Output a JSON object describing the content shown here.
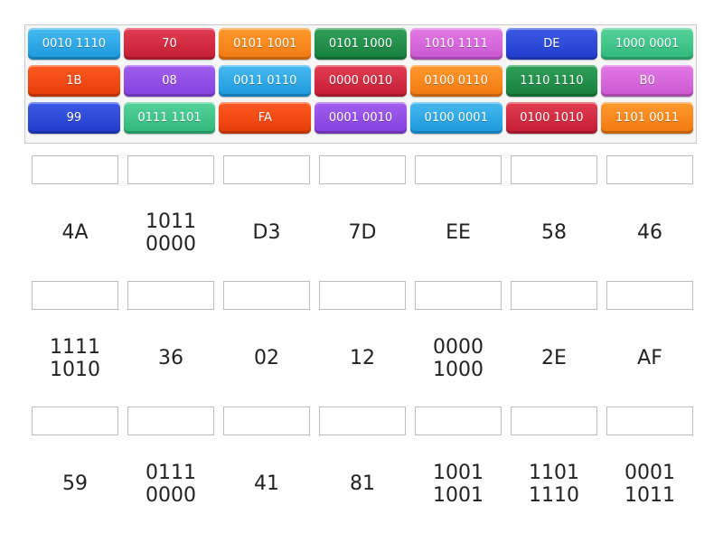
{
  "tiles": [
    {
      "text": "0010 1110",
      "color": "sky"
    },
    {
      "text": "70",
      "color": "red"
    },
    {
      "text": "0101 1001",
      "color": "orange"
    },
    {
      "text": "0101 1000",
      "color": "green"
    },
    {
      "text": "1010 1111",
      "color": "pink"
    },
    {
      "text": "DE",
      "color": "blue"
    },
    {
      "text": "1000 0001",
      "color": "mint"
    },
    {
      "text": "1B",
      "color": "redorange"
    },
    {
      "text": "08",
      "color": "purple"
    },
    {
      "text": "0011 0110",
      "color": "sky"
    },
    {
      "text": "0000 0010",
      "color": "red"
    },
    {
      "text": "0100 0110",
      "color": "orange"
    },
    {
      "text": "1110 1110",
      "color": "green"
    },
    {
      "text": "B0",
      "color": "pink"
    },
    {
      "text": "99",
      "color": "blue"
    },
    {
      "text": "0111 1101",
      "color": "mint"
    },
    {
      "text": "FA",
      "color": "redorange"
    },
    {
      "text": "0001 0010",
      "color": "purple"
    },
    {
      "text": "0100 0001",
      "color": "sky"
    },
    {
      "text": "0100 1010",
      "color": "red"
    },
    {
      "text": "1101 0011",
      "color": "orange"
    }
  ],
  "palette": {
    "sky": "#2aa8e6",
    "red": "#d22a40",
    "orange": "#f5861a",
    "green": "#208f4b",
    "pink": "#d466da",
    "blue": "#2b47d9",
    "mint": "#3fc487",
    "redorange": "#f24a12",
    "purple": "#934fe6"
  },
  "targets": [
    [
      "4A",
      "1011\n0000",
      "D3",
      "7D",
      "EE",
      "58",
      "46"
    ],
    [
      "1111\n1010",
      "36",
      "02",
      "12",
      "0000\n1000",
      "2E",
      "AF"
    ],
    [
      "59",
      "0111\n0000",
      "41",
      "81",
      "1001\n1001",
      "1101\n1110",
      "0001\n1011"
    ]
  ]
}
